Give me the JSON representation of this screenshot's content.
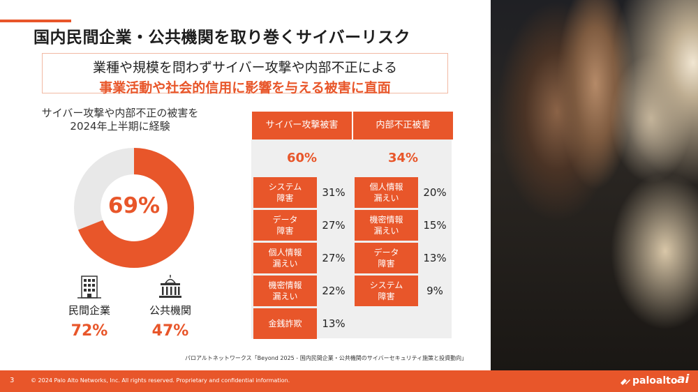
{
  "slide": {
    "title": "国内民間企業・公共機関を取り巻くサイバーリスク",
    "subtitle_line1": "業種や規模を問わずサイバー攻撃や内部不正による",
    "subtitle_line2": "事業活動や社会的信用に影響を与える被害に直面",
    "accent_color": "#e8562a"
  },
  "donut": {
    "title_line1": "サイバー攻撃や内部不正の被害を",
    "title_line2": "2024年上半期に経験",
    "percent_label": "69%",
    "value": 0.69
  },
  "orgs": [
    {
      "icon": "office-building-icon",
      "label": "民間企業",
      "percent": "72%"
    },
    {
      "icon": "government-building-icon",
      "label": "公共機関",
      "percent": "47%"
    }
  ],
  "table": {
    "cyber": {
      "header": "サイバー攻撃被害",
      "percent": "60%",
      "rows": [
        {
          "line1": "システム",
          "line2": "障害",
          "value": "31%"
        },
        {
          "line1": "データ",
          "line2": "障害",
          "value": "27%"
        },
        {
          "line1": "個人情報",
          "line2": "漏えい",
          "value": "27%"
        },
        {
          "line1": "機密情報",
          "line2": "漏えい",
          "value": "22%"
        },
        {
          "line1": "金銭詐欺",
          "line2": "",
          "value": "13%"
        }
      ]
    },
    "internal": {
      "header": "内部不正被害",
      "percent": "34%",
      "rows": [
        {
          "line1": "個人情報",
          "line2": "漏えい",
          "value": "20%"
        },
        {
          "line1": "機密情報",
          "line2": "漏えい",
          "value": "15%"
        },
        {
          "line1": "データ",
          "line2": "障害",
          "value": "13%"
        },
        {
          "line1": "システム",
          "line2": "障害",
          "value": "9%"
        }
      ]
    }
  },
  "source_note": "パロアルトネットワークス「Beyond 2025 - 国内民間企業・公共機関のサイバーセキュリティ施策と投資動向」",
  "footer": {
    "page_number": "3",
    "copyright": "© 2024 Palo Alto Networks, Inc. All rights reserved. Proprietary and confidential information.",
    "logo_text": "paloalto",
    "logo_suffix": "ai"
  }
}
